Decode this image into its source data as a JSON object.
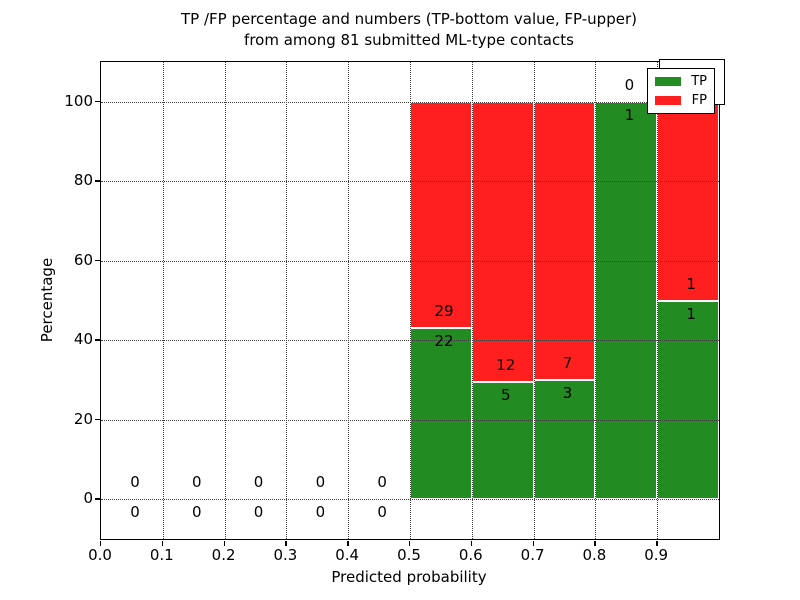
{
  "title": {
    "line1": "TP /FP percentage and numbers (TP-bottom value, FP-upper)",
    "line2": "from among 81 submitted ML-type contacts"
  },
  "chart_data": {
    "type": "bar",
    "stacked": true,
    "title": "TP /FP percentage and numbers (TP-bottom value, FP-upper) from among 81 submitted ML-type contacts",
    "xlabel": "Predicted probability",
    "ylabel": "Percentage",
    "xlim": [
      0,
      1
    ],
    "ylim": [
      -10,
      110
    ],
    "grid": "dotted",
    "legend_position": "upper right",
    "legend_labels": [
      "TP",
      "FP"
    ],
    "colors": {
      "tp": "#228b22",
      "fp": "#ff1f1f",
      "edge": "#ffffff",
      "grid": "#3c3c3c"
    },
    "bin_width": 0.1,
    "x_ticks": [
      {
        "v": 0.0,
        "label": "0.0"
      },
      {
        "v": 0.1,
        "label": "0.1"
      },
      {
        "v": 0.2,
        "label": "0.2"
      },
      {
        "v": 0.3,
        "label": "0.3"
      },
      {
        "v": 0.4,
        "label": "0.4"
      },
      {
        "v": 0.5,
        "label": "0.5"
      },
      {
        "v": 0.6,
        "label": "0.6"
      },
      {
        "v": 0.7,
        "label": "0.7"
      },
      {
        "v": 0.8,
        "label": "0.8"
      },
      {
        "v": 0.9,
        "label": "0.9"
      }
    ],
    "y_ticks": [
      {
        "v": 0,
        "label": "0"
      },
      {
        "v": 20,
        "label": "20"
      },
      {
        "v": 40,
        "label": "40"
      },
      {
        "v": 60,
        "label": "60"
      },
      {
        "v": 80,
        "label": "80"
      },
      {
        "v": 100,
        "label": "100"
      }
    ],
    "grid_x": [
      0.1,
      0.2,
      0.3,
      0.4,
      0.5,
      0.6,
      0.7,
      0.8,
      0.9
    ],
    "grid_y": [
      0,
      20,
      40,
      60,
      80,
      100
    ],
    "bins": [
      {
        "x0": 0.0,
        "x1": 0.1,
        "tp": 0,
        "fp": 0,
        "tp_pct": 0,
        "fp_pct": 0
      },
      {
        "x0": 0.1,
        "x1": 0.2,
        "tp": 0,
        "fp": 0,
        "tp_pct": 0,
        "fp_pct": 0
      },
      {
        "x0": 0.2,
        "x1": 0.3,
        "tp": 0,
        "fp": 0,
        "tp_pct": 0,
        "fp_pct": 0
      },
      {
        "x0": 0.3,
        "x1": 0.4,
        "tp": 0,
        "fp": 0,
        "tp_pct": 0,
        "fp_pct": 0
      },
      {
        "x0": 0.4,
        "x1": 0.5,
        "tp": 0,
        "fp": 0,
        "tp_pct": 0,
        "fp_pct": 0
      },
      {
        "x0": 0.5,
        "x1": 0.6,
        "tp": 22,
        "fp": 29,
        "tp_pct": 43.1,
        "fp_pct": 56.9
      },
      {
        "x0": 0.6,
        "x1": 0.7,
        "tp": 5,
        "fp": 12,
        "tp_pct": 29.4,
        "fp_pct": 70.6
      },
      {
        "x0": 0.7,
        "x1": 0.8,
        "tp": 3,
        "fp": 7,
        "tp_pct": 30,
        "fp_pct": 70
      },
      {
        "x0": 0.8,
        "x1": 0.9,
        "tp": 1,
        "fp": 0,
        "tp_pct": 100,
        "fp_pct": 0
      },
      {
        "x0": 0.9,
        "x1": 1.0,
        "tp": 1,
        "fp": 1,
        "tp_pct": 50,
        "fp_pct": 50
      }
    ],
    "series": [
      {
        "name": "TP",
        "values": [
          0,
          0,
          0,
          0,
          0,
          22,
          5,
          3,
          1,
          1
        ]
      },
      {
        "name": "FP",
        "values": [
          0,
          0,
          0,
          0,
          0,
          29,
          12,
          7,
          0,
          1
        ]
      }
    ]
  }
}
